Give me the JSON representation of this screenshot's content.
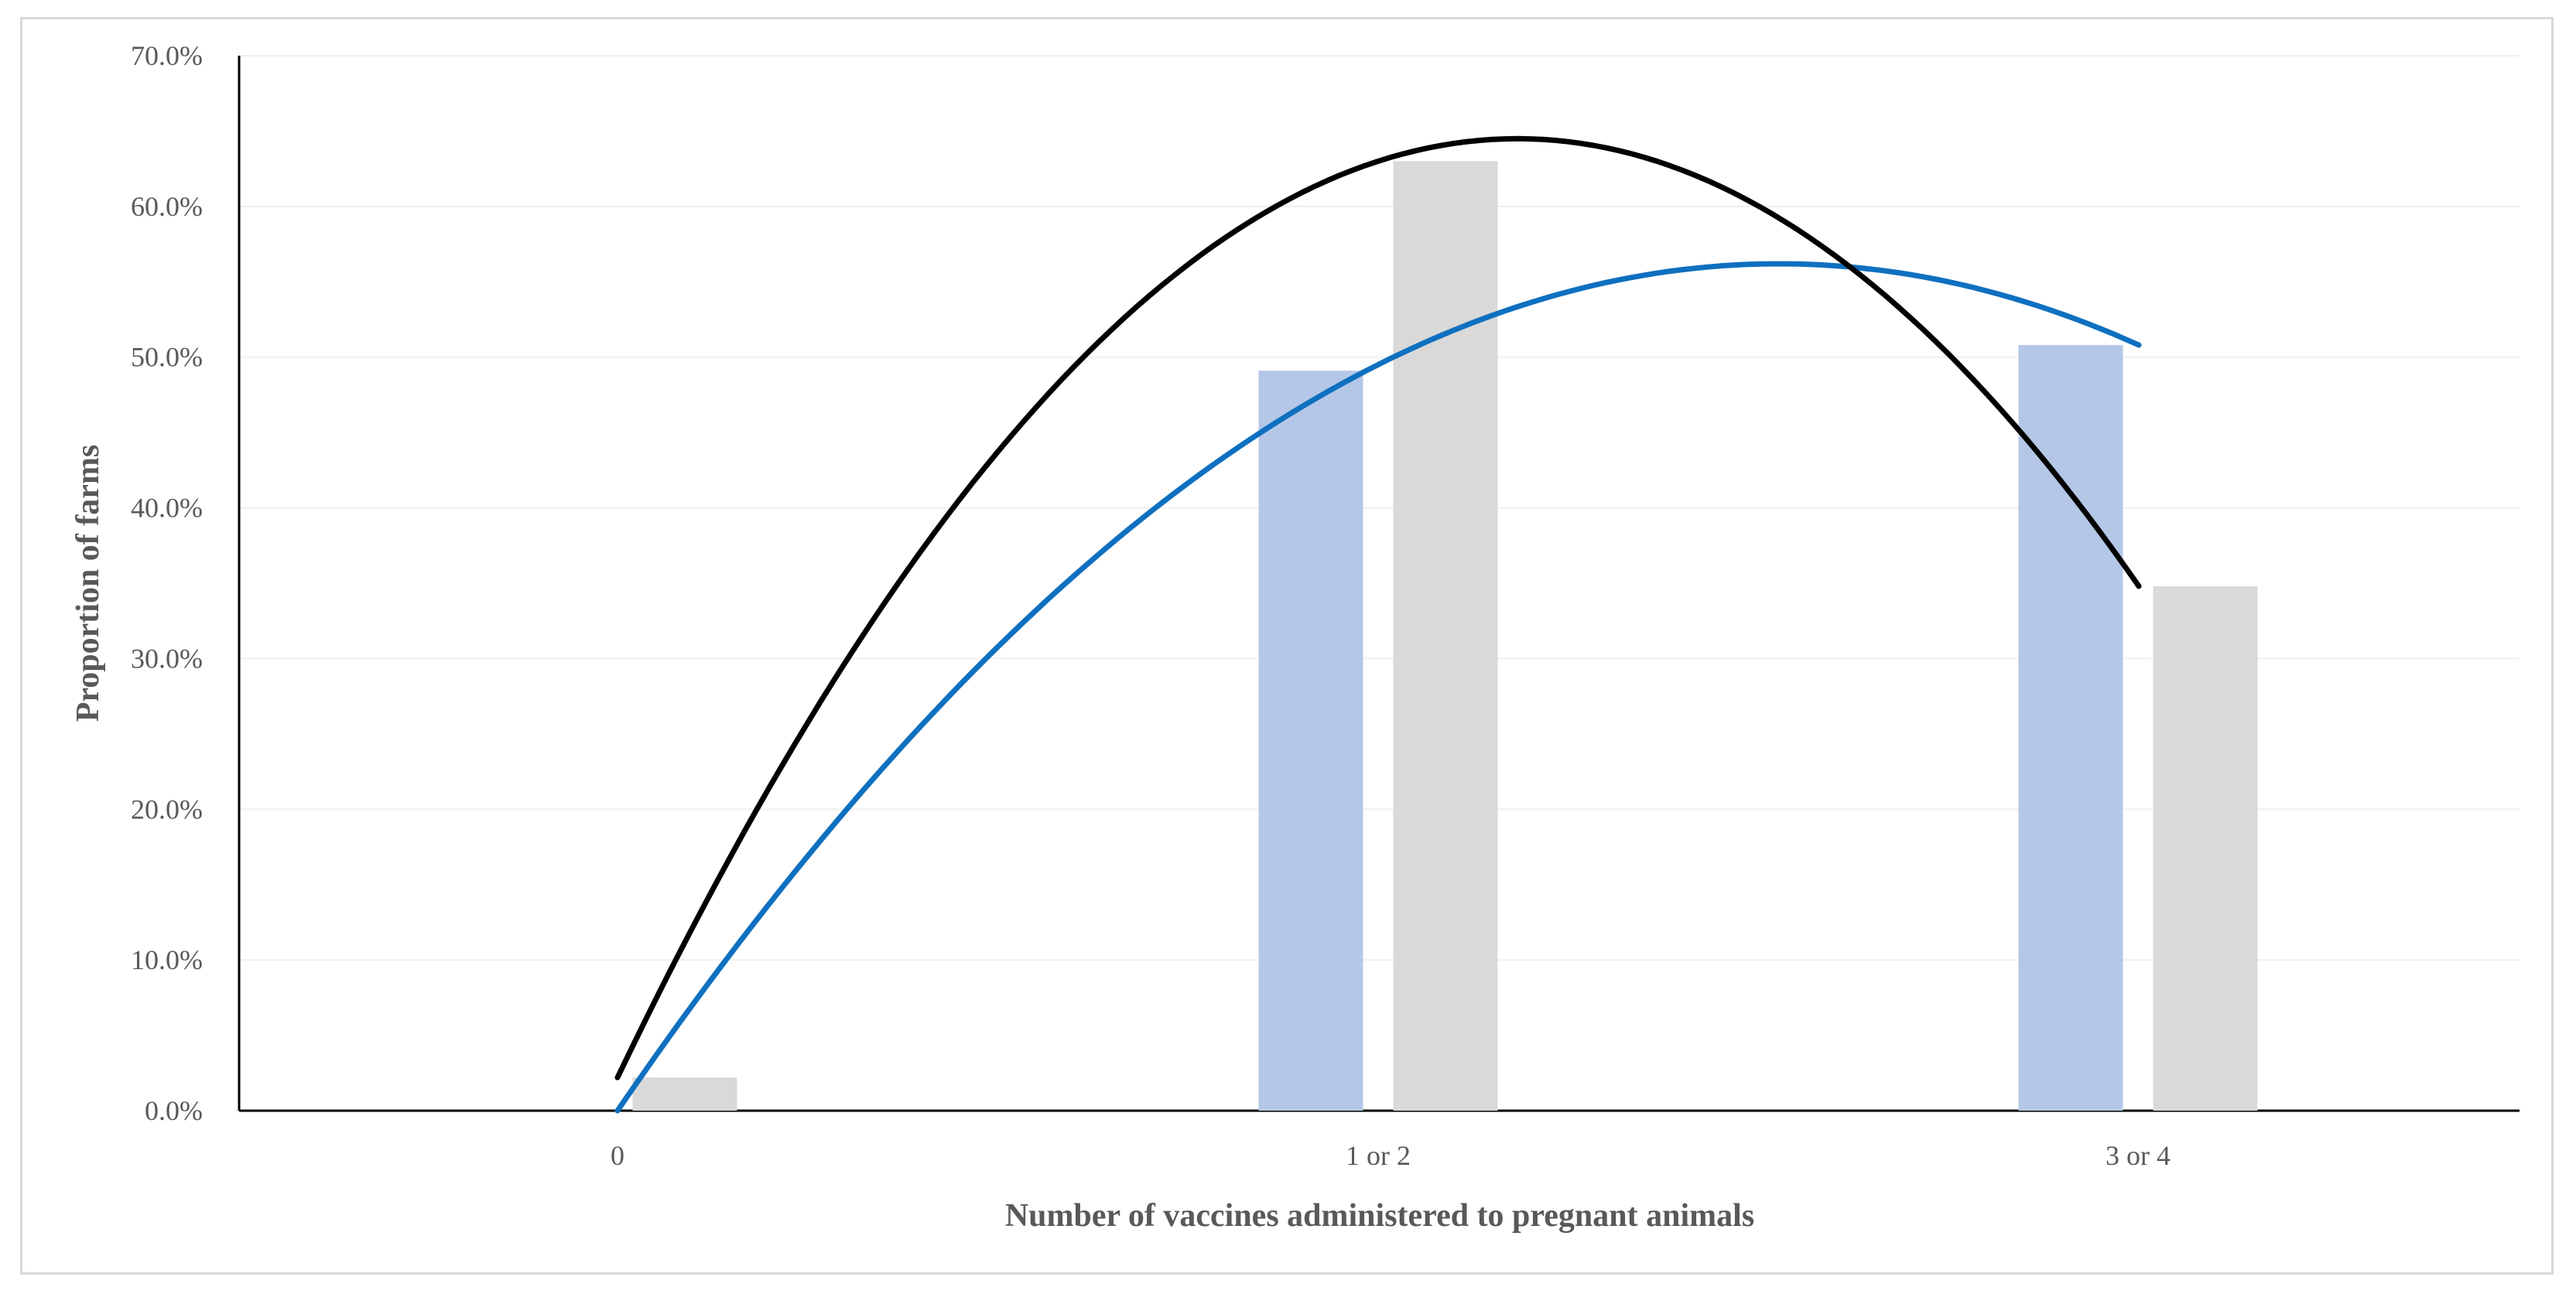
{
  "chart_data": {
    "type": "bar",
    "title": "",
    "xlabel": "Number of vaccines administered to pregnant animals",
    "ylabel": "Proportion of farms",
    "categories": [
      "0",
      "1 or 2",
      "3 or 4"
    ],
    "ylim": [
      0,
      0.7
    ],
    "yticks": [
      0,
      0.1,
      0.2,
      0.3,
      0.4,
      0.5,
      0.6,
      0.7
    ],
    "ytick_labels": [
      "0.0%",
      "10.0%",
      "20.0%",
      "30.0%",
      "40.0%",
      "50.0%",
      "60.0%",
      "70.0%"
    ],
    "grid": true,
    "series": [
      {
        "name": "series-1",
        "color": "#b4c7e7",
        "values": [
          0.0,
          0.491,
          0.508
        ]
      },
      {
        "name": "series-2",
        "color": "#d9d9d9",
        "values": [
          0.022,
          0.63,
          0.348
        ]
      }
    ],
    "trendlines": [
      {
        "name": "trend-series-1",
        "type": "polynomial-2",
        "color": "#0f70c0",
        "points": [
          [
            0,
            0.0
          ],
          [
            1,
            0.495
          ],
          [
            2,
            0.508
          ]
        ]
      },
      {
        "name": "trend-series-2",
        "type": "polynomial-2",
        "color": "#000000",
        "points": [
          [
            0,
            0.022
          ],
          [
            1,
            0.63
          ],
          [
            2,
            0.348
          ]
        ]
      }
    ]
  }
}
